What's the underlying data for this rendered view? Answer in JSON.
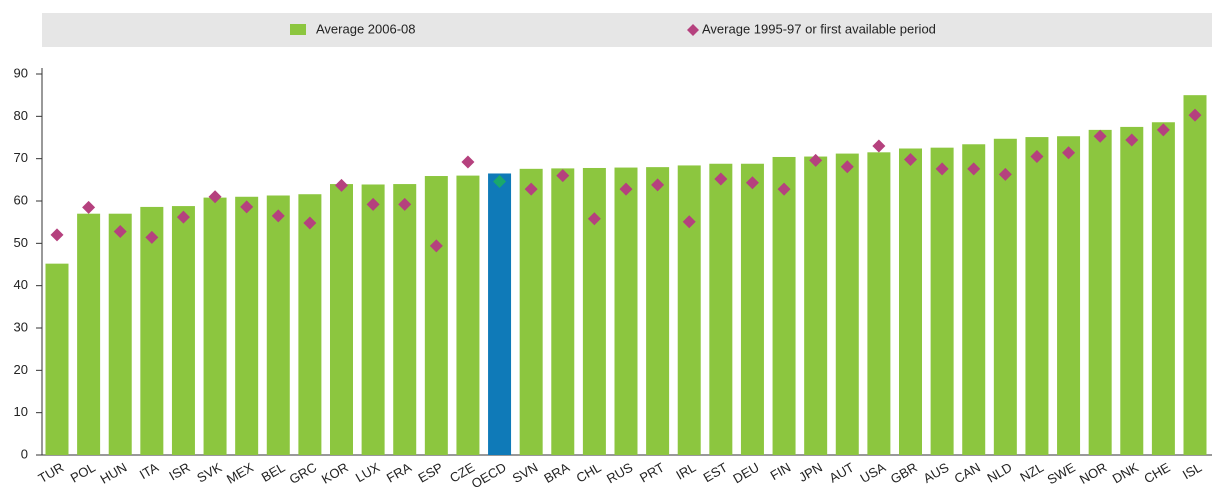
{
  "chart_data": {
    "type": "bar_marker",
    "categories": [
      "TUR",
      "POL",
      "HUN",
      "ITA",
      "ISR",
      "SVK",
      "MEX",
      "BEL",
      "GRC",
      "KOR",
      "LUX",
      "FRA",
      "ESP",
      "CZE",
      "OECD",
      "SVN",
      "BRA",
      "CHL",
      "RUS",
      "PRT",
      "IRL",
      "EST",
      "DEU",
      "FIN",
      "JPN",
      "AUT",
      "USA",
      "GBR",
      "AUS",
      "CAN",
      "NLD",
      "NZL",
      "SWE",
      "NOR",
      "DNK",
      "CHE",
      "ISL"
    ],
    "series": [
      {
        "name": "Average 2006-08",
        "color": "#8cc63f",
        "kind": "bar",
        "colors": [
          "#8cc63f",
          "#8cc63f",
          "#8cc63f",
          "#8cc63f",
          "#8cc63f",
          "#8cc63f",
          "#8cc63f",
          "#8cc63f",
          "#8cc63f",
          "#8cc63f",
          "#8cc63f",
          "#8cc63f",
          "#8cc63f",
          "#8cc63f",
          "#0f7ab8",
          "#8cc63f",
          "#8cc63f",
          "#8cc63f",
          "#8cc63f",
          "#8cc63f",
          "#8cc63f",
          "#8cc63f",
          "#8cc63f",
          "#8cc63f",
          "#8cc63f",
          "#8cc63f",
          "#8cc63f",
          "#8cc63f",
          "#8cc63f",
          "#8cc63f",
          "#8cc63f",
          "#8cc63f",
          "#8cc63f",
          "#8cc63f",
          "#8cc63f",
          "#8cc63f",
          "#8cc63f"
        ],
        "values": [
          45.2,
          57,
          57,
          58.6,
          58.8,
          60.8,
          61,
          61.3,
          61.6,
          64,
          63.9,
          64,
          65.9,
          66,
          66.5,
          67.6,
          67.7,
          67.8,
          67.9,
          68,
          68.4,
          68.8,
          68.8,
          70.4,
          70.5,
          71.2,
          71.5,
          72.4,
          72.6,
          73.4,
          74.7,
          75.1,
          75.3,
          76.8,
          77.5,
          78.6,
          85
        ]
      },
      {
        "name": "Average 1995-97 or first available period",
        "color": "#b5417e",
        "kind": "marker",
        "colors": [
          "#b5417e",
          "#b5417e",
          "#b5417e",
          "#b5417e",
          "#b5417e",
          "#b5417e",
          "#b5417e",
          "#b5417e",
          "#b5417e",
          "#b5417e",
          "#b5417e",
          "#b5417e",
          "#b5417e",
          "#b5417e",
          "#1aa86b",
          "#b5417e",
          "#b5417e",
          "#b5417e",
          "#b5417e",
          "#b5417e",
          "#b5417e",
          "#b5417e",
          "#b5417e",
          "#b5417e",
          "#b5417e",
          "#b5417e",
          "#b5417e",
          "#b5417e",
          "#b5417e",
          "#b5417e",
          "#b5417e",
          "#b5417e",
          "#b5417e",
          "#b5417e",
          "#b5417e",
          "#b5417e",
          "#b5417e"
        ],
        "values": [
          52,
          58.5,
          52.8,
          51.4,
          56.2,
          61,
          58.6,
          56.5,
          54.8,
          63.7,
          59.2,
          59.2,
          49.4,
          69.2,
          64.6,
          62.8,
          66,
          55.8,
          62.8,
          63.8,
          55.1,
          65.2,
          64.3,
          62.8,
          69.6,
          68.1,
          73,
          69.8,
          67.6,
          67.6,
          66.3,
          70.5,
          71.4,
          75.3,
          74.4,
          76.8,
          80.3
        ]
      }
    ],
    "ylim": [
      0,
      90
    ],
    "yticks": [
      0,
      10,
      20,
      30,
      40,
      50,
      60,
      70,
      80,
      90
    ],
    "legend": "top"
  }
}
